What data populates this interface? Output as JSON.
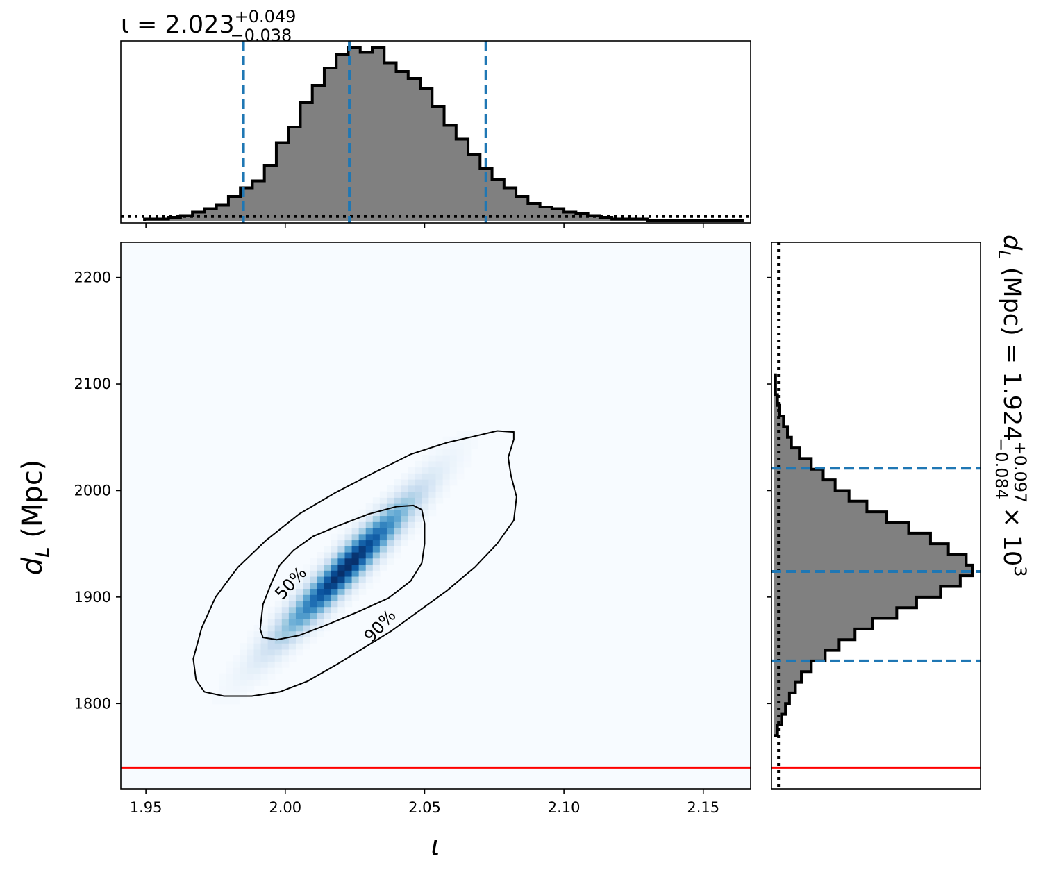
{
  "chart_data": [
    {
      "type": "histogram",
      "panel": "top-marginal",
      "title": {
        "base": "ι = 2.023",
        "sup": "+0.049",
        "sub": "−0.038"
      },
      "x_range": [
        1.941,
        2.167
      ],
      "bin_edges_start": 1.9495,
      "bin_width": 0.0043,
      "counts": [
        1,
        1,
        2,
        3,
        5,
        7,
        9,
        14,
        19,
        23,
        32,
        45,
        54,
        68,
        78,
        88,
        96,
        100,
        97,
        100,
        91,
        86,
        82,
        76,
        66,
        55,
        47,
        38,
        30,
        24,
        19,
        14,
        10,
        8,
        7,
        5,
        4,
        3,
        2,
        1,
        1,
        1,
        0,
        0,
        0,
        0,
        0,
        0,
        0,
        0
      ],
      "quantile_lines": [
        1.985,
        2.023,
        2.072
      ],
      "prior_level": 0.025,
      "colors": {
        "fill": "#808080",
        "edge": "#000000",
        "quantile": "#1f77b4"
      }
    },
    {
      "type": "heatmap",
      "panel": "joint",
      "x_range": [
        1.941,
        2.167
      ],
      "y_range": [
        1720,
        2233
      ],
      "x_ticks": [
        {
          "value": 1.95,
          "label": "1.95"
        },
        {
          "value": 2.0,
          "label": "2.00"
        },
        {
          "value": 2.05,
          "label": "2.05"
        },
        {
          "value": 2.1,
          "label": "2.10"
        },
        {
          "value": 2.15,
          "label": "2.15"
        }
      ],
      "y_ticks": [
        {
          "value": 1800,
          "label": "1800"
        },
        {
          "value": 1900,
          "label": "1900"
        },
        {
          "value": 2000,
          "label": "2000"
        },
        {
          "value": 2100,
          "label": "2100"
        },
        {
          "value": 2200,
          "label": "2200"
        }
      ],
      "xlabel": "ι",
      "ylabel": {
        "base": "d",
        "sub": "L",
        "rest": " (Mpc)"
      },
      "density": {
        "mean": [
          2.022,
          1928
        ],
        "sigma_x": 0.016,
        "sigma_y": 44,
        "rho": 0.95
      },
      "contours": [
        {
          "label": "50%",
          "label_at": [
            2.002,
            1913
          ],
          "label_angle": -47,
          "points": [
            [
              1.991,
              1870
            ],
            [
              1.992,
              1862
            ],
            [
              1.997,
              1860
            ],
            [
              2.005,
              1864
            ],
            [
              2.015,
              1874
            ],
            [
              2.026,
              1886
            ],
            [
              2.037,
              1899
            ],
            [
              2.045,
              1915
            ],
            [
              2.049,
              1932
            ],
            [
              2.05,
              1950
            ],
            [
              2.05,
              1969
            ],
            [
              2.049,
              1982
            ],
            [
              2.046,
              1986
            ],
            [
              2.04,
              1985
            ],
            [
              2.03,
              1978
            ],
            [
              2.02,
              1968
            ],
            [
              2.01,
              1957
            ],
            [
              2.003,
              1944
            ],
            [
              1.998,
              1930
            ],
            [
              1.995,
              1913
            ],
            [
              1.992,
              1893
            ],
            [
              1.991,
              1870
            ]
          ]
        },
        {
          "label": "90%",
          "label_at": [
            2.034,
            1873
          ],
          "label_angle": -47,
          "points": [
            [
              1.971,
              1811
            ],
            [
              1.978,
              1807
            ],
            [
              1.988,
              1807
            ],
            [
              1.998,
              1811
            ],
            [
              2.008,
              1821
            ],
            [
              2.018,
              1836
            ],
            [
              2.028,
              1852
            ],
            [
              2.038,
              1868
            ],
            [
              2.048,
              1887
            ],
            [
              2.058,
              1906
            ],
            [
              2.068,
              1928
            ],
            [
              2.076,
              1950
            ],
            [
              2.082,
              1972
            ],
            [
              2.083,
              1994
            ],
            [
              2.081,
              2014
            ],
            [
              2.08,
              2031
            ],
            [
              2.082,
              2048
            ],
            [
              2.082,
              2055
            ],
            [
              2.076,
              2056
            ],
            [
              2.068,
              2051
            ],
            [
              2.058,
              2045
            ],
            [
              2.045,
              2034
            ],
            [
              2.032,
              2017
            ],
            [
              2.018,
              1998
            ],
            [
              2.005,
              1978
            ],
            [
              1.993,
              1953
            ],
            [
              1.983,
              1928
            ],
            [
              1.975,
              1900
            ],
            [
              1.97,
              1871
            ],
            [
              1.967,
              1842
            ],
            [
              1.968,
              1822
            ],
            [
              1.971,
              1811
            ]
          ]
        }
      ],
      "truth_line_y": 1740,
      "colors": {
        "contour": "#000000",
        "truth": "#ff0000"
      }
    },
    {
      "type": "histogram",
      "panel": "right-marginal",
      "orientation": "horizontal",
      "title": {
        "base": "d",
        "sub": "L",
        "rest": " (Mpc) = 1.924",
        "sup2": "+0.097",
        "sub2": "−0.084",
        "tail": " × 10",
        "exp": "3"
      },
      "y_range": [
        1720,
        2233
      ],
      "bin_edges_start": 1770,
      "bin_width": 10,
      "counts": [
        2,
        4,
        6,
        8,
        11,
        14,
        19,
        26,
        33,
        41,
        50,
        62,
        72,
        84,
        94,
        100,
        97,
        88,
        79,
        68,
        57,
        47,
        38,
        31,
        25,
        19,
        13,
        9,
        7,
        5,
        3,
        2,
        1,
        1
      ],
      "quantile_lines": [
        1840,
        1924,
        2021
      ],
      "prior_level": 0.025,
      "truth_line_y": 1740,
      "colors": {
        "fill": "#808080",
        "edge": "#000000",
        "quantile": "#1f77b4",
        "truth": "#ff0000"
      }
    }
  ]
}
